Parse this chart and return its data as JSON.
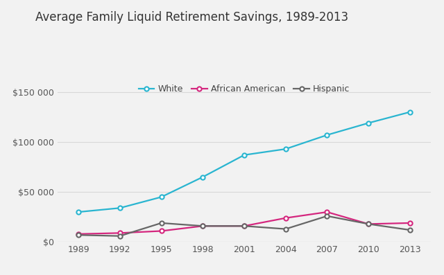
{
  "title": "Average Family Liquid Retirement Savings, 1989-2013",
  "years": [
    1989,
    1992,
    1995,
    1998,
    2001,
    2004,
    2007,
    2010,
    2013
  ],
  "white": [
    30000,
    34000,
    45000,
    65000,
    87000,
    93000,
    107000,
    119000,
    130000
  ],
  "african_american": [
    8000,
    9000,
    11000,
    16000,
    16000,
    24000,
    30000,
    18000,
    19000
  ],
  "hispanic": [
    7000,
    6000,
    19000,
    16000,
    16000,
    13000,
    26000,
    18000,
    12000
  ],
  "white_color": "#29b5d0",
  "african_american_color": "#d4267e",
  "hispanic_color": "#666666",
  "background_color": "#f2f2f2",
  "ylim": [
    0,
    165000
  ],
  "yticks": [
    0,
    50000,
    100000,
    150000
  ],
  "ytick_labels": [
    "$0",
    "$50 000",
    "$100 000",
    "$150 000"
  ],
  "legend_labels": [
    "White",
    "African American",
    "Hispanic"
  ],
  "title_fontsize": 12,
  "tick_fontsize": 9,
  "legend_fontsize": 9,
  "marker": "o",
  "marker_size": 4.5,
  "linewidth": 1.6
}
